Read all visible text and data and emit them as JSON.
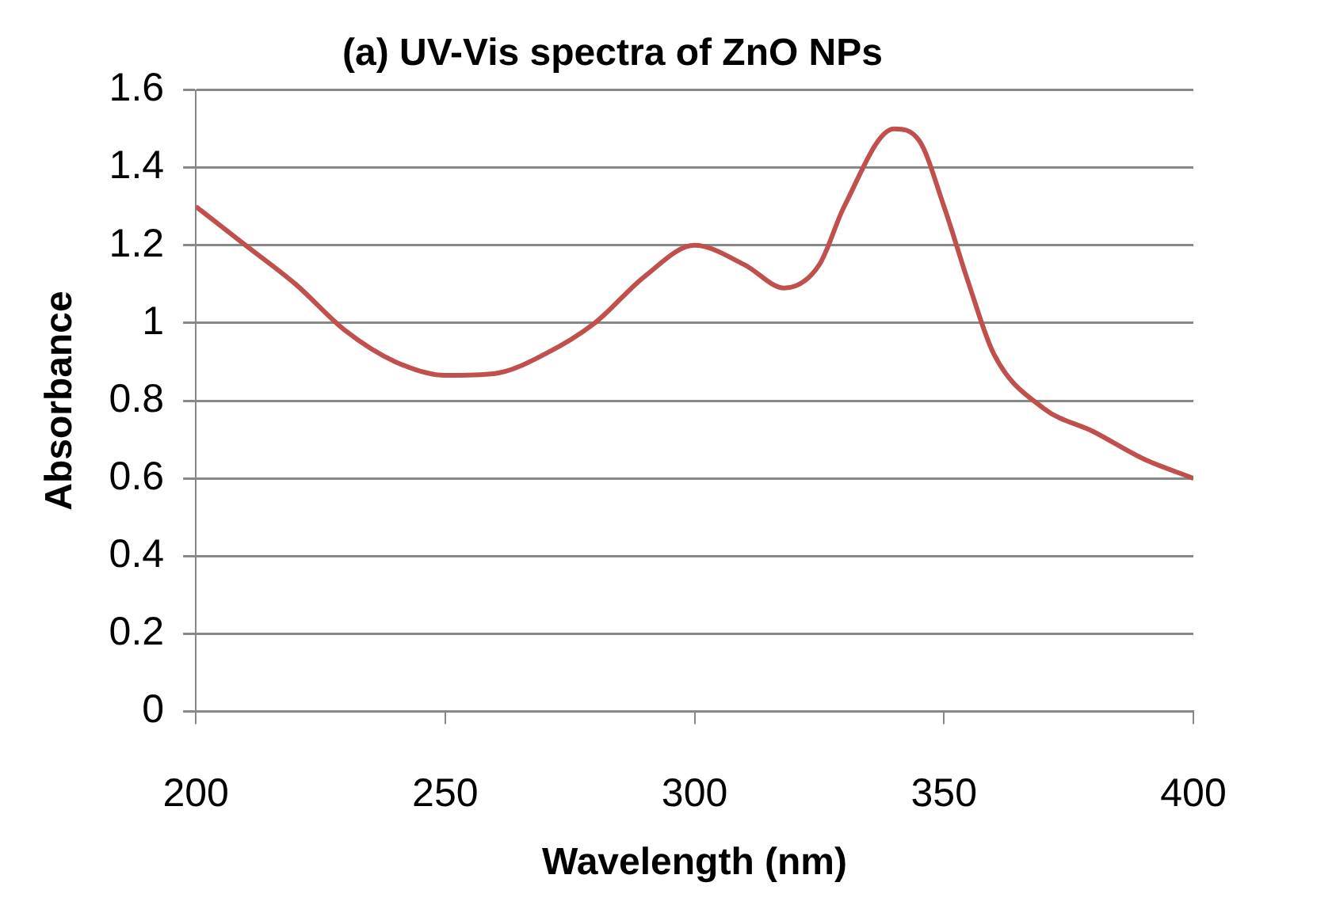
{
  "chart_data": {
    "type": "line",
    "title": "(a) UV-Vis spectra of ZnO NPs",
    "xlabel": "Wavelength (nm)",
    "ylabel": "Absorbance",
    "x": [
      200,
      210,
      220,
      230,
      240,
      250,
      260,
      270,
      280,
      290,
      300,
      310,
      318,
      325,
      330,
      340,
      345,
      350,
      355,
      360,
      370,
      380,
      390,
      400
    ],
    "series": [
      {
        "color": "#c0504d",
        "values": [
          1.3,
          1.2,
          1.1,
          0.98,
          0.9,
          0.865,
          0.87,
          0.92,
          1.0,
          1.12,
          1.2,
          1.15,
          1.09,
          1.15,
          1.3,
          1.5,
          1.47,
          1.3,
          1.1,
          0.92,
          0.78,
          0.72,
          0.65,
          0.6
        ]
      }
    ],
    "xlim": [
      200,
      400
    ],
    "xticks": [
      200,
      250,
      300,
      350,
      400
    ],
    "ylim": [
      0,
      1.6
    ],
    "yticks": [
      0,
      0.2,
      0.4,
      0.6,
      0.8,
      1,
      1.2,
      1.4,
      1.6
    ],
    "grid": "y",
    "legend": false,
    "marker": "none",
    "line_style": "solid"
  }
}
